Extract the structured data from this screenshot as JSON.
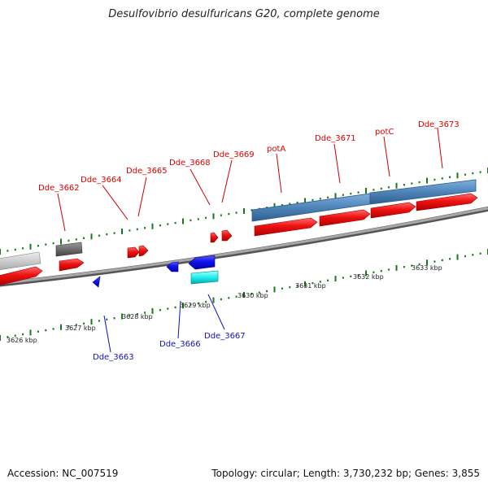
{
  "title": "Desulfovibrio desulfuricans G20, complete genome",
  "footer": {
    "accession": "Accession: NC_007519",
    "summary": "Topology: circular; Length: 3,730,232 bp; Genes: 3,855"
  },
  "colors": {
    "forward_gene": "#ee1111",
    "reverse_gene": "#1111ee",
    "operon": "#4f84b8",
    "backbone": "#888888",
    "tick": "#1a7a1a",
    "top_label": "#dd0000",
    "bottom_label": "#1111bb"
  },
  "scale_labels": [
    "3626 kbp",
    "3627 kbp",
    "3628 kbp",
    "3629 kbp",
    "3630 kbp",
    "3631 kbp",
    "3632 kbp",
    "3633 kbp"
  ],
  "top_gene_labels": [
    "Dde_3662",
    "Dde_3664",
    "Dde_3665",
    "Dde_3668",
    "Dde_3669",
    "potA",
    "Dde_3671",
    "potC",
    "Dde_3673"
  ],
  "bottom_gene_labels": [
    "Dde_3663",
    "Dde_3666",
    "Dde_3667"
  ]
}
